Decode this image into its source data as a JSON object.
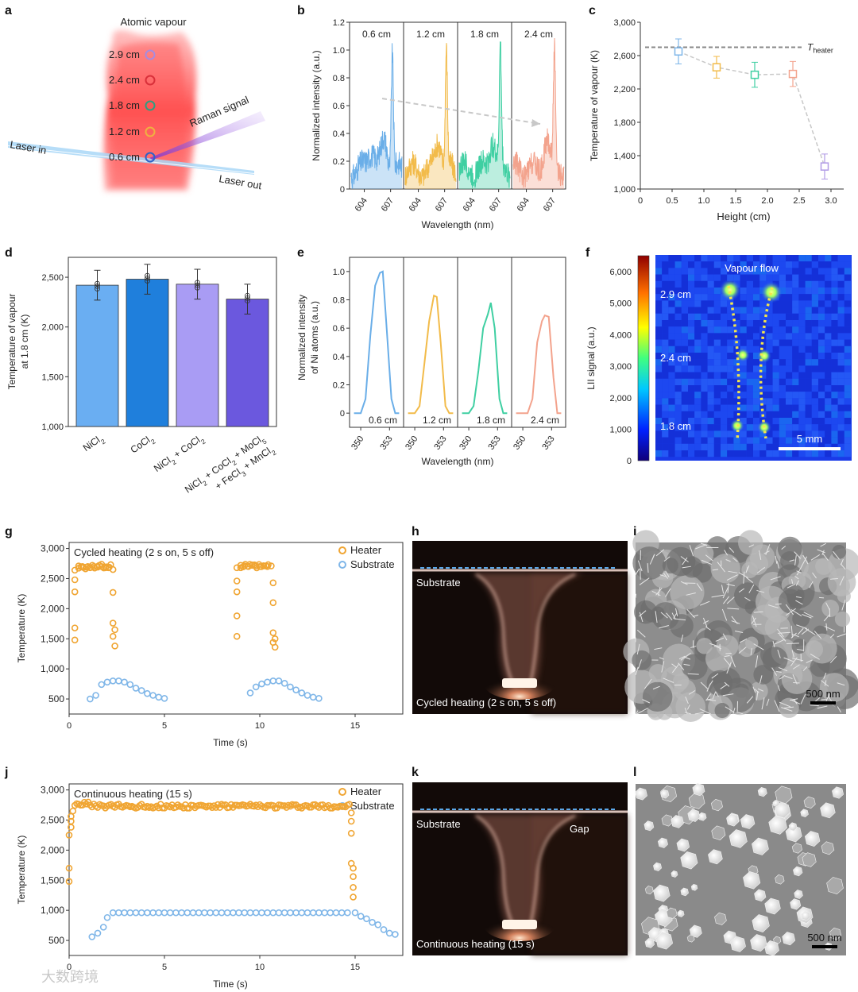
{
  "panel_letters": [
    "a",
    "b",
    "c",
    "d",
    "e",
    "f",
    "g",
    "h",
    "i",
    "j",
    "k",
    "l"
  ],
  "colors": {
    "blue": "#6aaee8",
    "yellow": "#f2bb4a",
    "green": "#3fcfa2",
    "salmon": "#f3a38d",
    "purple": "#b19be6",
    "orange": "#f0a532",
    "lightblue": "#7fb6e8"
  },
  "panel_a": {
    "title": "Atomic vapour",
    "heights": [
      {
        "label": "2.9 cm",
        "color": "#a78be0"
      },
      {
        "label": "2.4 cm",
        "color": "#d9303a"
      },
      {
        "label": "1.8 cm",
        "color": "#2f9e80"
      },
      {
        "label": "1.2 cm",
        "color": "#f0b040"
      },
      {
        "label": "0.6 cm",
        "color": "#2c62c8"
      }
    ],
    "laser_in": "Laser in",
    "laser_out": "Laser out",
    "raman": "Raman signal"
  },
  "panel_b_scale": {
    "ticks_x": [
      "604",
      "607"
    ]
  },
  "panel_f": {
    "colorbar_ticks": [
      "6,000",
      "5,000",
      "4,000",
      "3,000",
      "2,000",
      "1,000",
      "0"
    ],
    "ylabel": "LII signal (a.u.)",
    "labels": [
      "Vapour flow",
      "2.9 cm",
      "2.4 cm",
      "1.8 cm"
    ],
    "scalebar": "5 mm"
  },
  "panel_h": {
    "top": "Substrate",
    "bottom": "Cycled heating (2 s on, 5 s off)"
  },
  "panel_k": {
    "top": "Substrate",
    "gap": "Gap",
    "bottom": "Continuous heating (15 s)"
  },
  "panel_i": {
    "scalebar": "500 nm"
  },
  "panel_l": {
    "scalebar": "500 nm"
  },
  "watermark": "大数跨境",
  "chart_data": [
    {
      "panel": "b",
      "type": "line",
      "xlabel": "Wavelength (nm)",
      "ylabel": "Normalized intensity (a.u.)",
      "ylim": [
        0,
        1.2
      ],
      "yticks": [
        "0",
        "0.2",
        "0.4",
        "0.6",
        "0.8",
        "1.0",
        "1.2"
      ],
      "xticks": [
        604,
        607
      ],
      "series": [
        {
          "name": "0.6 cm",
          "color": "#6aaee8",
          "peak_x": 607.2,
          "peak": 1.0
        },
        {
          "name": "1.2 cm",
          "color": "#f2bb4a",
          "peak_x": 607.2,
          "peak": 0.99
        },
        {
          "name": "1.8 cm",
          "color": "#3fcfa2",
          "peak_x": 607.2,
          "peak": 0.99
        },
        {
          "name": "2.4 cm",
          "color": "#f3a38d",
          "peak_x": 607.2,
          "peak": 0.99
        }
      ]
    },
    {
      "panel": "c",
      "type": "scatter",
      "xlabel": "Height (cm)",
      "ylabel": "Temperature of vapour (K)",
      "xlim": [
        0,
        3.0
      ],
      "ylim": [
        1000,
        3000
      ],
      "xticks": [
        "0",
        "0.5",
        "1.0",
        "1.5",
        "2.0",
        "2.5",
        "3.0"
      ],
      "yticks": [
        "1,000",
        "1,400",
        "1,800",
        "2,200",
        "2,600",
        "3,000"
      ],
      "reference": {
        "label": "T",
        "sub": "heater",
        "value": 2700
      },
      "points": [
        {
          "x": 0.6,
          "y": 2650,
          "err": 150,
          "color": "#7fb6e8"
        },
        {
          "x": 1.2,
          "y": 2460,
          "err": 130,
          "color": "#f2bb4a"
        },
        {
          "x": 1.8,
          "y": 2370,
          "err": 150,
          "color": "#3fcfa2"
        },
        {
          "x": 2.4,
          "y": 2380,
          "err": 150,
          "color": "#f3a38d"
        },
        {
          "x": 2.9,
          "y": 1270,
          "err": 150,
          "color": "#b19be6"
        }
      ]
    },
    {
      "panel": "d",
      "type": "bar",
      "ylabel": "Temperature of vapour at 1.8 cm (K)",
      "ylim": [
        1000,
        2700
      ],
      "yticks": [
        "1,000",
        "1,500",
        "2,000",
        "2,500"
      ],
      "categories": [
        "NiCl2",
        "CoCl2",
        "NiCl2 + CoCl2",
        "NiCl2 + CoCl2 + MoCl5 + FeCl3 + MnCl2"
      ],
      "values": [
        2420,
        2480,
        2430,
        2280
      ],
      "errors": [
        150,
        150,
        150,
        150
      ],
      "bar_colors": [
        "#6aaef2",
        "#1f7fdc",
        "#a99cf4",
        "#6b58de"
      ]
    },
    {
      "panel": "e",
      "type": "line",
      "xlabel": "Wavelength (nm)",
      "ylabel": "Normalized intensity of Ni atoms (a.u.)",
      "ylim": [
        0,
        1.0
      ],
      "yticks": [
        "0",
        "0.2",
        "0.4",
        "0.6",
        "0.8",
        "1.0"
      ],
      "xticks": [
        350,
        353
      ],
      "series": [
        {
          "name": "0.6 cm",
          "color": "#6aaee8",
          "x": [
            349.3,
            350.0,
            350.5,
            351.0,
            351.5,
            352.0,
            352.3,
            352.7,
            353.2,
            353.6,
            354.0
          ],
          "y": [
            0.0,
            0.0,
            0.1,
            0.55,
            0.9,
            0.99,
            1.0,
            0.6,
            0.1,
            0.0,
            0.0
          ]
        },
        {
          "name": "1.2 cm",
          "color": "#f2bb4a",
          "x": [
            349.3,
            350.0,
            350.5,
            351.0,
            351.5,
            352.0,
            352.3,
            352.7,
            353.2,
            353.6,
            354.0
          ],
          "y": [
            0.0,
            0.0,
            0.05,
            0.35,
            0.65,
            0.83,
            0.82,
            0.5,
            0.05,
            0.0,
            0.0
          ]
        },
        {
          "name": "1.8 cm",
          "color": "#3fcfa2",
          "x": [
            349.3,
            350.0,
            350.5,
            351.0,
            351.5,
            352.0,
            352.3,
            352.7,
            353.2,
            353.6,
            354.0
          ],
          "y": [
            0.0,
            0.0,
            0.05,
            0.3,
            0.6,
            0.7,
            0.78,
            0.6,
            0.1,
            0.0,
            0.0
          ]
        },
        {
          "name": "2.4 cm",
          "color": "#f3a38d",
          "x": [
            349.3,
            350.0,
            350.5,
            351.0,
            351.5,
            352.0,
            352.3,
            352.7,
            353.2,
            353.6,
            354.0
          ],
          "y": [
            0.0,
            0.0,
            0.0,
            0.1,
            0.5,
            0.65,
            0.69,
            0.68,
            0.25,
            0.0,
            0.0
          ]
        }
      ]
    },
    {
      "panel": "g",
      "type": "scatter",
      "title": "Cycled heating (2 s on, 5 s off)",
      "xlabel": "Time (s)",
      "ylabel": "Temperature (K)",
      "xlim": [
        0,
        17.5
      ],
      "ylim": [
        250,
        3100
      ],
      "xticks": [
        "0",
        "5",
        "10",
        "15"
      ],
      "yticks": [
        "500",
        "1,000",
        "1,500",
        "2,000",
        "2,500",
        "3,000"
      ],
      "series": [
        {
          "name": "Heater",
          "color": "#f0a532",
          "x": [
            0.3,
            0.3,
            0.3,
            0.3,
            0.3,
            0.5,
            0.7,
            0.9,
            1.1,
            1.3,
            1.5,
            1.7,
            1.9,
            2.1,
            2.3,
            2.3,
            2.3,
            2.3,
            2.4,
            2.4,
            8.8,
            8.8,
            8.8,
            8.8,
            8.8,
            9.0,
            9.2,
            9.4,
            9.6,
            9.8,
            10.0,
            10.2,
            10.4,
            10.6,
            10.7,
            10.7,
            10.7,
            10.7,
            10.8,
            10.8
          ],
          "y": [
            1480,
            1680,
            2280,
            2480,
            2640,
            2710,
            2700,
            2690,
            2680,
            2700,
            2690,
            2700,
            2680,
            2690,
            2650,
            2270,
            1760,
            1540,
            1380,
            1650,
            1540,
            1880,
            2280,
            2460,
            2680,
            2720,
            2710,
            2700,
            2720,
            2710,
            2700,
            2710,
            2700,
            2710,
            2430,
            2100,
            1600,
            1440,
            1360,
            1500
          ]
        },
        {
          "name": "Substrate",
          "color": "#7fb6e8",
          "x": [
            1.1,
            1.4,
            1.7,
            2.0,
            2.3,
            2.6,
            2.9,
            3.2,
            3.5,
            3.8,
            4.1,
            4.4,
            4.7,
            5.0,
            9.5,
            9.8,
            10.1,
            10.4,
            10.7,
            11.0,
            11.3,
            11.6,
            11.9,
            12.2,
            12.5,
            12.8,
            13.1
          ],
          "y": [
            500,
            560,
            740,
            780,
            800,
            800,
            780,
            740,
            680,
            640,
            590,
            560,
            530,
            510,
            600,
            700,
            750,
            780,
            800,
            800,
            760,
            700,
            650,
            600,
            560,
            530,
            510
          ]
        }
      ]
    },
    {
      "panel": "j",
      "type": "scatter",
      "title": "Continuous heating (15 s)",
      "xlabel": "Time (s)",
      "ylabel": "Temperature (K)",
      "xlim": [
        0,
        17.5
      ],
      "ylim": [
        250,
        3100
      ],
      "xticks": [
        "0",
        "5",
        "10",
        "15"
      ],
      "yticks": [
        "500",
        "1,000",
        "1,500",
        "2,000",
        "2,500",
        "3,000"
      ],
      "series": [
        {
          "name": "Heater",
          "color": "#f0a532",
          "plateau": 2730,
          "x": [
            0.0,
            0.0,
            0.0,
            0.1,
            0.1,
            0.1,
            0.2,
            14.8,
            14.8,
            14.8,
            14.8,
            14.9,
            14.9,
            14.9,
            14.9
          ],
          "y": [
            1480,
            1700,
            2250,
            2380,
            2480,
            2560,
            2650,
            2620,
            2480,
            2280,
            1780,
            1700,
            1560,
            1380,
            1220
          ]
        },
        {
          "name": "Substrate",
          "color": "#7fb6e8",
          "plateau": 960,
          "x": [
            1.2,
            1.5,
            1.8,
            2.0,
            15.0,
            15.3,
            15.6,
            15.9,
            16.2,
            16.5,
            16.8,
            17.1
          ],
          "y": [
            560,
            620,
            720,
            880,
            960,
            900,
            860,
            800,
            760,
            680,
            620,
            600
          ]
        }
      ]
    }
  ]
}
